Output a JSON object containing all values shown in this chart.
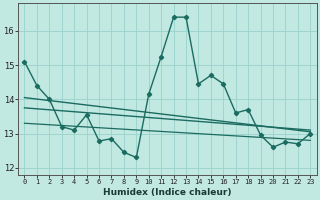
{
  "xlabel": "Humidex (Indice chaleur)",
  "bg_color": "#c2e8e2",
  "grid_color": "#9fd4ce",
  "line_color": "#1a6b60",
  "xlim": [
    -0.5,
    23.5
  ],
  "ylim": [
    11.8,
    16.8
  ],
  "yticks": [
    12,
    13,
    14,
    15,
    16
  ],
  "xticks": [
    0,
    1,
    2,
    3,
    4,
    5,
    6,
    7,
    8,
    9,
    10,
    11,
    12,
    13,
    14,
    15,
    16,
    17,
    18,
    19,
    20,
    21,
    22,
    23
  ],
  "main_series": [
    15.1,
    14.4,
    14.0,
    13.2,
    13.1,
    13.55,
    12.78,
    12.85,
    12.45,
    12.3,
    14.15,
    15.25,
    16.4,
    16.4,
    14.45,
    14.7,
    14.45,
    13.6,
    13.7,
    12.95,
    12.6,
    12.75,
    12.7,
    13.0
  ],
  "trend1": [
    14.05,
    13.05
  ],
  "trend2": [
    13.75,
    13.1
  ],
  "trend3": [
    13.3,
    12.8
  ]
}
